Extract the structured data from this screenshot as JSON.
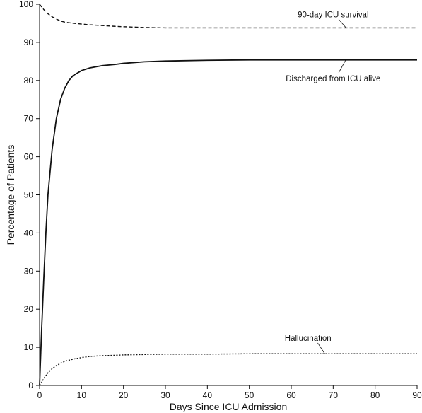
{
  "chart_data": {
    "type": "line",
    "title": "",
    "xlabel": "Days Since ICU Admission",
    "ylabel": "Percentage of Patients",
    "xlim": [
      0,
      90
    ],
    "ylim": [
      0,
      100
    ],
    "xticks": [
      0,
      10,
      20,
      30,
      40,
      50,
      60,
      70,
      80,
      90
    ],
    "yticks": [
      0,
      10,
      20,
      30,
      40,
      50,
      60,
      70,
      80,
      90,
      100
    ],
    "grid": false,
    "legend": "none (series labeled directly by annotations)",
    "series": [
      {
        "name": "90-day ICU survival",
        "style": "dashed",
        "x": [
          0,
          0.5,
          1,
          2,
          3,
          4,
          5,
          6,
          8,
          10,
          12,
          15,
          18,
          20,
          25,
          30,
          40,
          50,
          60,
          70,
          80,
          90
        ],
        "y": [
          100,
          99.3,
          98.6,
          97.5,
          96.7,
          96.1,
          95.6,
          95.3,
          95.0,
          94.8,
          94.6,
          94.4,
          94.2,
          94.1,
          93.9,
          93.8,
          93.8,
          93.8,
          93.8,
          93.8,
          93.8,
          93.8
        ]
      },
      {
        "name": "Discharged from ICU alive",
        "style": "solid",
        "x": [
          0,
          0.5,
          1,
          1.5,
          2,
          3,
          3.5,
          4,
          5,
          6,
          7,
          8,
          10,
          12,
          15,
          18,
          20,
          25,
          30,
          40,
          50,
          60,
          70,
          80,
          90
        ],
        "y": [
          0,
          15,
          28,
          40,
          50,
          62,
          66,
          70,
          75,
          78,
          80,
          81.3,
          82.6,
          83.3,
          83.9,
          84.2,
          84.5,
          84.9,
          85.1,
          85.3,
          85.4,
          85.4,
          85.4,
          85.4,
          85.4
        ]
      },
      {
        "name": "Hallucination",
        "style": "dotted",
        "x": [
          0,
          0.5,
          1,
          2,
          3,
          4,
          5,
          6,
          8,
          10,
          12,
          15,
          18,
          20,
          25,
          30,
          40,
          50,
          60,
          70,
          80,
          90
        ],
        "y": [
          0,
          0.8,
          1.8,
          3.3,
          4.4,
          5.2,
          5.8,
          6.3,
          6.9,
          7.3,
          7.6,
          7.8,
          7.9,
          8.0,
          8.1,
          8.2,
          8.2,
          8.3,
          8.3,
          8.3,
          8.3,
          8.3
        ]
      }
    ],
    "annotations": [
      {
        "text": "90-day ICU survival",
        "series": "90-day ICU survival",
        "at_x": 70,
        "at_y": 96.6,
        "points_to_x": 73,
        "points_to_y": 93.9
      },
      {
        "text": "Discharged from ICU alive",
        "series": "Discharged from ICU alive",
        "at_x": 70,
        "at_y": 79.8,
        "points_to_x": 73,
        "points_to_y": 85.4
      },
      {
        "text": "Hallucination",
        "series": "Hallucination",
        "at_x": 64,
        "at_y": 11.7,
        "points_to_x": 68,
        "points_to_y": 8.3
      }
    ]
  }
}
